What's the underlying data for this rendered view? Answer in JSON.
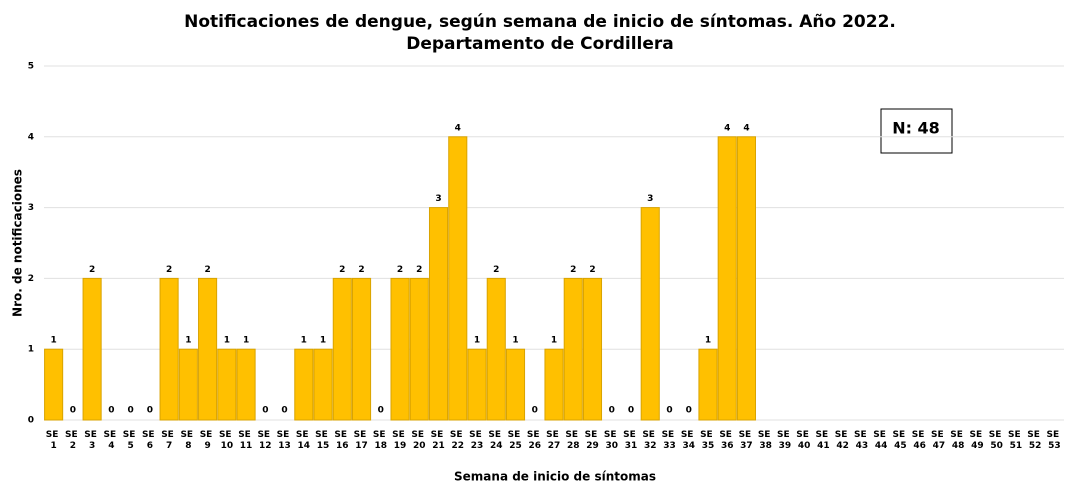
{
  "chart_data": {
    "type": "bar",
    "title": "Notificaciones de dengue, según semana de inicio de síntomas. Año 2022.",
    "subtitle": "Departamento de Cordillera",
    "x_label": "Semana de inicio de síntomas",
    "y_label": "Nro. de notificaciones",
    "annotation": "N: 48",
    "categories": [
      "SE 1",
      "SE 2",
      "SE 3",
      "SE 4",
      "SE 5",
      "SE 6",
      "SE 7",
      "SE 8",
      "SE 9",
      "SE 10",
      "SE 11",
      "SE 12",
      "SE 13",
      "SE 14",
      "SE 15",
      "SE 16",
      "SE 17",
      "SE 18",
      "SE 19",
      "SE 20",
      "SE 21",
      "SE 22",
      "SE 23",
      "SE 24",
      "SE 25",
      "SE 26",
      "SE 27",
      "SE 28",
      "SE 29",
      "SE 30",
      "SE 31",
      "SE 32",
      "SE 33",
      "SE 34",
      "SE 35",
      "SE 36",
      "SE 37",
      "SE 38",
      "SE 39",
      "SE 40",
      "SE 41",
      "SE 42",
      "SE 43",
      "SE 44",
      "SE 45",
      "SE 46",
      "SE 47",
      "SE 48",
      "SE 49",
      "SE 50",
      "SE 51",
      "SE 52",
      "SE 53"
    ],
    "values": [
      1,
      0,
      2,
      0,
      0,
      0,
      2,
      1,
      2,
      1,
      1,
      0,
      0,
      1,
      1,
      2,
      2,
      0,
      2,
      2,
      3,
      4,
      1,
      2,
      1,
      0,
      1,
      2,
      2,
      0,
      0,
      3,
      0,
      0,
      1,
      4,
      4,
      null,
      null,
      null,
      null,
      null,
      null,
      null,
      null,
      null,
      null,
      null,
      null,
      null,
      null,
      null,
      null
    ],
    "color": "#ffc000",
    "ylim": [
      0,
      5
    ],
    "yticks": [
      0,
      1,
      2,
      3,
      4,
      5
    ],
    "grid": true
  }
}
